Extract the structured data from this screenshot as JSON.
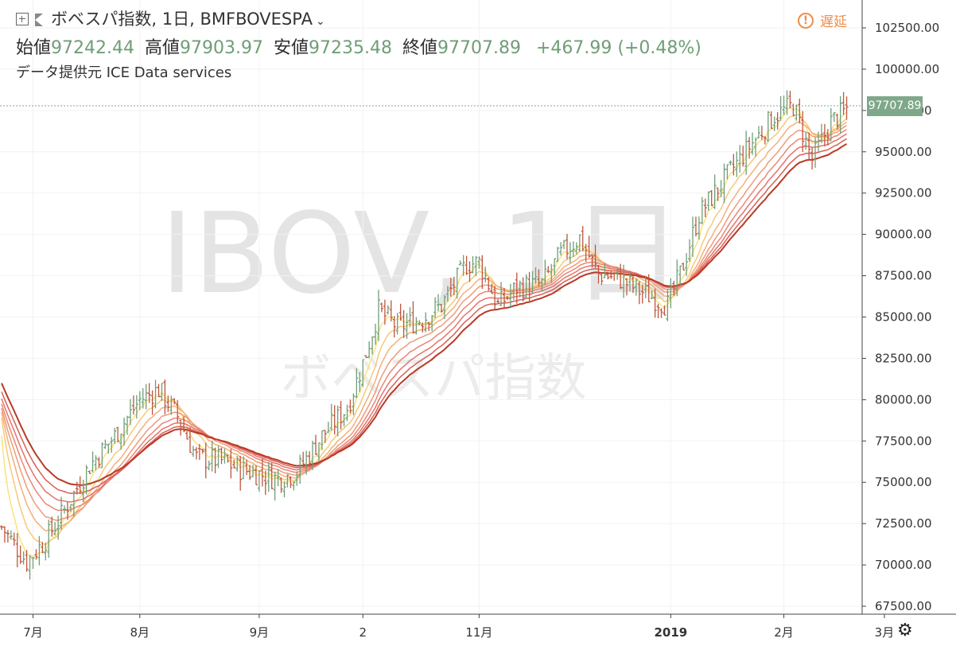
{
  "header": {
    "symbol_title": "ボベスパ指数, 1日, BMFBOVESPA",
    "ohlc": {
      "open_label": "始値",
      "open": "97242.44",
      "high_label": "高値",
      "high": "97903.97",
      "low_label": "安値",
      "low": "97235.48",
      "close_label": "終値",
      "close": "97707.89",
      "change": "+467.99 (+0.48%)"
    },
    "source": "データ提供元 ICE Data services",
    "delay_label": "遅延"
  },
  "watermark": {
    "symbol": "IBOV, 1日",
    "name": "ボベスパ指数"
  },
  "colors": {
    "up": "#6f9e76",
    "down": "#c0553c",
    "last_price": "#7fa88a",
    "ribbon": [
      "#fbe27a",
      "#f7c97a",
      "#f3b07a",
      "#ef9a7a",
      "#eb8674",
      "#e5726a",
      "#d85f55",
      "#b83a25"
    ]
  },
  "icons": {
    "expand": "expand-icon",
    "flag": "flag-icon",
    "delay": "exclamation-icon",
    "settings": "gear-icon"
  },
  "chart_data": {
    "type": "ohlc",
    "title": "ボベスパ指数, 1日, BMFBOVESPA",
    "y_axis": {
      "ticks": [
        102500,
        100000,
        97500,
        95000,
        92500,
        90000,
        87500,
        85000,
        82500,
        80000,
        77500,
        75000,
        72500,
        70000,
        67500
      ],
      "tick_labels": [
        "102500.00",
        "100000.00",
        "97500.00",
        "95000.00",
        "92500.00",
        "90000.00",
        "87500.00",
        "85000.00",
        "82500.00",
        "80000.00",
        "77500.00",
        "75000.00",
        "72500.00",
        "70000.00",
        "67500.00"
      ],
      "range": [
        67000,
        104200
      ],
      "side": "right"
    },
    "x_axis": {
      "tick_labels": [
        "7月",
        "8月",
        "9月",
        "2",
        "11月",
        "2019",
        "2月",
        "3月"
      ],
      "tick_bars": [
        10,
        44,
        82,
        115,
        152,
        213,
        249,
        281
      ],
      "bold_labels": [
        "2019"
      ]
    },
    "last_price": 97707.89,
    "bar_count": 270,
    "price_path": [
      [
        0,
        72300
      ],
      [
        8,
        70200
      ],
      [
        14,
        71500
      ],
      [
        20,
        73300
      ],
      [
        28,
        76000
      ],
      [
        36,
        77800
      ],
      [
        44,
        80000
      ],
      [
        50,
        80600
      ],
      [
        56,
        79000
      ],
      [
        62,
        76500
      ],
      [
        70,
        76300
      ],
      [
        76,
        75800
      ],
      [
        82,
        75500
      ],
      [
        88,
        75200
      ],
      [
        94,
        75600
      ],
      [
        102,
        77800
      ],
      [
        110,
        79500
      ],
      [
        115,
        82200
      ],
      [
        120,
        85400
      ],
      [
        126,
        84400
      ],
      [
        134,
        84900
      ],
      [
        140,
        85700
      ],
      [
        148,
        88200
      ],
      [
        152,
        88300
      ],
      [
        158,
        85700
      ],
      [
        164,
        86800
      ],
      [
        172,
        87000
      ],
      [
        178,
        88800
      ],
      [
        184,
        89800
      ],
      [
        190,
        87600
      ],
      [
        196,
        87400
      ],
      [
        202,
        86700
      ],
      [
        208,
        86100
      ],
      [
        212,
        85700
      ],
      [
        216,
        87600
      ],
      [
        222,
        91200
      ],
      [
        230,
        93300
      ],
      [
        238,
        95300
      ],
      [
        246,
        97200
      ],
      [
        252,
        97800
      ],
      [
        258,
        94500
      ],
      [
        264,
        96800
      ],
      [
        270,
        97700
      ]
    ],
    "ribbon_periods": [
      5,
      10,
      15,
      20,
      25,
      30,
      35,
      40
    ]
  }
}
